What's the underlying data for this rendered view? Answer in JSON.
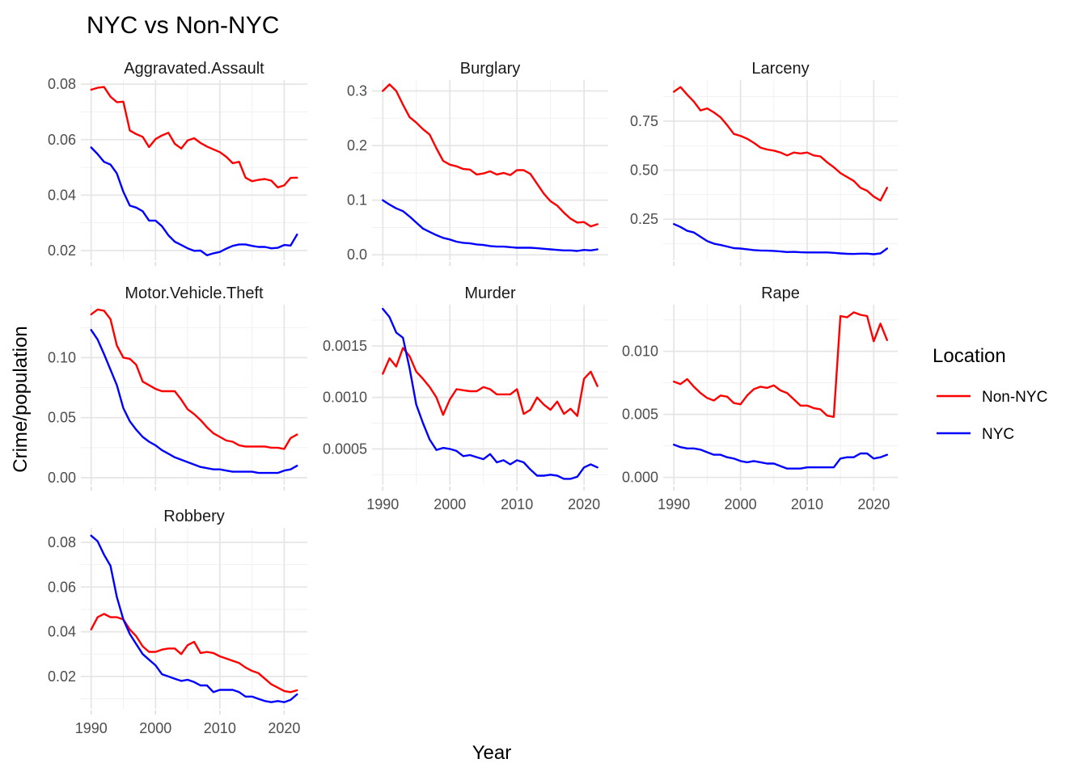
{
  "title": "NYC vs Non-NYC",
  "xlabel": "Year",
  "ylabel": "Crime/population",
  "legend": {
    "title": "Location",
    "items": [
      {
        "name": "Non-NYC",
        "color": "#ff0000"
      },
      {
        "name": "NYC",
        "color": "#0000ff"
      }
    ]
  },
  "chart_data": {
    "type": "line",
    "x": [
      1990,
      1991,
      1992,
      1993,
      1994,
      1995,
      1996,
      1997,
      1998,
      1999,
      2000,
      2001,
      2002,
      2003,
      2004,
      2005,
      2006,
      2007,
      2008,
      2009,
      2010,
      2011,
      2012,
      2013,
      2014,
      2015,
      2016,
      2017,
      2018,
      2019,
      2020,
      2021,
      2022
    ],
    "xticks": [
      1990,
      2000,
      2010,
      2020
    ],
    "panels": [
      {
        "name": "Aggravated.Assault",
        "ylim": [
          0.0165,
          0.0815
        ],
        "yticks": [
          0.02,
          0.04,
          0.06,
          0.08
        ],
        "ytick_labels": [
          "0.02",
          "0.04",
          "0.06",
          "0.08"
        ],
        "series": [
          {
            "name": "Non-NYC",
            "values": [
              0.078,
              0.0787,
              0.079,
              0.0755,
              0.0735,
              0.0737,
              0.0633,
              0.062,
              0.061,
              0.0573,
              0.0602,
              0.0615,
              0.0625,
              0.0585,
              0.0568,
              0.0597,
              0.0605,
              0.0588,
              0.0575,
              0.0565,
              0.0555,
              0.0538,
              0.0515,
              0.052,
              0.0463,
              0.045,
              0.0455,
              0.0458,
              0.0452,
              0.0428,
              0.0435,
              0.0462,
              0.0463
            ]
          },
          {
            "name": "NYC",
            "values": [
              0.0572,
              0.0548,
              0.052,
              0.051,
              0.0478,
              0.0412,
              0.0362,
              0.0355,
              0.0342,
              0.0308,
              0.0308,
              0.0288,
              0.0255,
              0.0232,
              0.022,
              0.0208,
              0.0199,
              0.02,
              0.0183,
              0.019,
              0.0195,
              0.0207,
              0.0217,
              0.0222,
              0.0222,
              0.0217,
              0.0213,
              0.0213,
              0.0208,
              0.021,
              0.022,
              0.0218,
              0.0258
            ]
          }
        ]
      },
      {
        "name": "Burglary",
        "ylim": [
          -0.01,
          0.32
        ],
        "yticks": [
          0,
          0.1,
          0.2,
          0.3
        ],
        "ytick_labels": [
          "0.0",
          "0.1",
          "0.2",
          "0.3"
        ],
        "series": [
          {
            "name": "Non-NYC",
            "values": [
              0.3,
              0.312,
              0.3,
              0.275,
              0.252,
              0.242,
              0.23,
              0.22,
              0.195,
              0.172,
              0.165,
              0.162,
              0.157,
              0.156,
              0.147,
              0.149,
              0.153,
              0.147,
              0.15,
              0.146,
              0.155,
              0.155,
              0.148,
              0.13,
              0.112,
              0.098,
              0.09,
              0.077,
              0.066,
              0.059,
              0.06,
              0.052,
              0.056
            ]
          },
          {
            "name": "NYC",
            "values": [
              0.1,
              0.092,
              0.085,
              0.08,
              0.07,
              0.059,
              0.048,
              0.042,
              0.036,
              0.031,
              0.028,
              0.024,
              0.022,
              0.021,
              0.019,
              0.018,
              0.016,
              0.015,
              0.015,
              0.014,
              0.013,
              0.013,
              0.013,
              0.012,
              0.011,
              0.01,
              0.009,
              0.008,
              0.008,
              0.007,
              0.009,
              0.008,
              0.01
            ]
          }
        ]
      },
      {
        "name": "Larceny",
        "ylim": [
          0.04,
          0.96
        ],
        "yticks": [
          0.25,
          0.5,
          0.75
        ],
        "ytick_labels": [
          "0.25",
          "0.50",
          "0.75"
        ],
        "series": [
          {
            "name": "Non-NYC",
            "values": [
              0.9,
              0.924,
              0.885,
              0.85,
              0.805,
              0.815,
              0.795,
              0.77,
              0.73,
              0.685,
              0.675,
              0.66,
              0.64,
              0.615,
              0.605,
              0.6,
              0.59,
              0.575,
              0.59,
              0.585,
              0.59,
              0.575,
              0.57,
              0.54,
              0.515,
              0.485,
              0.465,
              0.445,
              0.41,
              0.395,
              0.365,
              0.345,
              0.41
            ]
          },
          {
            "name": "NYC",
            "values": [
              0.225,
              0.21,
              0.19,
              0.182,
              0.16,
              0.138,
              0.125,
              0.118,
              0.11,
              0.102,
              0.1,
              0.096,
              0.092,
              0.09,
              0.089,
              0.088,
              0.085,
              0.082,
              0.083,
              0.081,
              0.08,
              0.08,
              0.08,
              0.08,
              0.078,
              0.075,
              0.073,
              0.072,
              0.074,
              0.074,
              0.071,
              0.075,
              0.1
            ]
          }
        ]
      },
      {
        "name": "Motor.Vehicle.Theft",
        "ylim": [
          -0.006,
          0.144
        ],
        "yticks": [
          0,
          0.05,
          0.1
        ],
        "ytick_labels": [
          "0.00",
          "0.05",
          "0.10"
        ],
        "series": [
          {
            "name": "Non-NYC",
            "values": [
              0.136,
              0.14,
              0.139,
              0.132,
              0.11,
              0.1,
              0.099,
              0.094,
              0.08,
              0.077,
              0.074,
              0.072,
              0.072,
              0.072,
              0.065,
              0.057,
              0.053,
              0.048,
              0.042,
              0.037,
              0.034,
              0.031,
              0.03,
              0.027,
              0.026,
              0.026,
              0.026,
              0.026,
              0.025,
              0.025,
              0.024,
              0.033,
              0.036
            ]
          },
          {
            "name": "NYC",
            "values": [
              0.123,
              0.115,
              0.103,
              0.09,
              0.077,
              0.058,
              0.047,
              0.04,
              0.034,
              0.03,
              0.027,
              0.023,
              0.02,
              0.017,
              0.015,
              0.013,
              0.011,
              0.009,
              0.008,
              0.007,
              0.007,
              0.006,
              0.005,
              0.005,
              0.005,
              0.005,
              0.004,
              0.004,
              0.004,
              0.004,
              0.006,
              0.007,
              0.01
            ]
          }
        ]
      },
      {
        "name": "Murder",
        "ylim": [
          0.00015,
          0.0019
        ],
        "yticks": [
          0.0005,
          0.001,
          0.0015
        ],
        "ytick_labels": [
          "0.0005",
          "0.0010",
          "0.0015"
        ],
        "series": [
          {
            "name": "Non-NYC",
            "values": [
              0.00123,
              0.00138,
              0.0013,
              0.00148,
              0.0014,
              0.00125,
              0.00118,
              0.0011,
              0.001,
              0.00083,
              0.00098,
              0.00108,
              0.00107,
              0.00106,
              0.00106,
              0.0011,
              0.00108,
              0.00103,
              0.00103,
              0.00103,
              0.00108,
              0.00084,
              0.00088,
              0.001,
              0.00093,
              0.00088,
              0.00096,
              0.00084,
              0.00089,
              0.00082,
              0.00118,
              0.00125,
              0.00111
            ]
          },
          {
            "name": "NYC",
            "values": [
              0.00186,
              0.00178,
              0.00163,
              0.00158,
              0.00128,
              0.00093,
              0.00075,
              0.00059,
              0.00049,
              0.00051,
              0.0005,
              0.00048,
              0.00043,
              0.00044,
              0.00042,
              0.0004,
              0.00045,
              0.00037,
              0.00039,
              0.00035,
              0.00039,
              0.00037,
              0.0003,
              0.00024,
              0.00024,
              0.00025,
              0.00024,
              0.00021,
              0.00021,
              0.00023,
              0.00032,
              0.00035,
              0.00032
            ]
          }
        ]
      },
      {
        "name": "Rape",
        "ylim": [
          -0.0006,
          0.0137
        ],
        "yticks": [
          0,
          0.005,
          0.01
        ],
        "ytick_labels": [
          "0.000",
          "0.005",
          "0.010"
        ],
        "series": [
          {
            "name": "Non-NYC",
            "values": [
              0.0076,
              0.0074,
              0.0078,
              0.0072,
              0.0067,
              0.0063,
              0.0061,
              0.0065,
              0.0064,
              0.0059,
              0.0058,
              0.0065,
              0.007,
              0.0072,
              0.0071,
              0.0073,
              0.0069,
              0.0067,
              0.0062,
              0.0057,
              0.0057,
              0.0055,
              0.0054,
              0.0049,
              0.0048,
              0.0128,
              0.0127,
              0.0131,
              0.0129,
              0.0128,
              0.0108,
              0.0122,
              0.0109
            ]
          },
          {
            "name": "NYC",
            "values": [
              0.0026,
              0.0024,
              0.0023,
              0.0023,
              0.0022,
              0.002,
              0.0018,
              0.0018,
              0.0016,
              0.0015,
              0.0013,
              0.0012,
              0.0013,
              0.0012,
              0.0011,
              0.0011,
              0.0009,
              0.0007,
              0.0007,
              0.0007,
              0.0008,
              0.0008,
              0.0008,
              0.0008,
              0.0008,
              0.0015,
              0.0016,
              0.0016,
              0.0019,
              0.0019,
              0.0015,
              0.0016,
              0.0018
            ]
          }
        ]
      },
      {
        "name": "Robbery",
        "ylim": [
          0.0055,
          0.0865
        ],
        "yticks": [
          0.02,
          0.04,
          0.06,
          0.08
        ],
        "ytick_labels": [
          "0.02",
          "0.04",
          "0.06",
          "0.08"
        ],
        "series": [
          {
            "name": "Non-NYC",
            "values": [
              0.041,
              0.0465,
              0.048,
              0.0465,
              0.0465,
              0.0455,
              0.041,
              0.038,
              0.0335,
              0.031,
              0.031,
              0.032,
              0.0325,
              0.0325,
              0.03,
              0.034,
              0.0355,
              0.0305,
              0.031,
              0.0305,
              0.029,
              0.028,
              0.027,
              0.026,
              0.024,
              0.0225,
              0.0215,
              0.019,
              0.0165,
              0.015,
              0.0135,
              0.013,
              0.0138
            ]
          },
          {
            "name": "NYC",
            "values": [
              0.083,
              0.0805,
              0.0745,
              0.0695,
              0.0555,
              0.0455,
              0.039,
              0.0345,
              0.03,
              0.0275,
              0.025,
              0.021,
              0.02,
              0.019,
              0.018,
              0.0185,
              0.0175,
              0.016,
              0.016,
              0.013,
              0.014,
              0.014,
              0.014,
              0.013,
              0.011,
              0.011,
              0.01,
              0.009,
              0.0085,
              0.009,
              0.0085,
              0.0095,
              0.012
            ]
          }
        ]
      }
    ]
  }
}
